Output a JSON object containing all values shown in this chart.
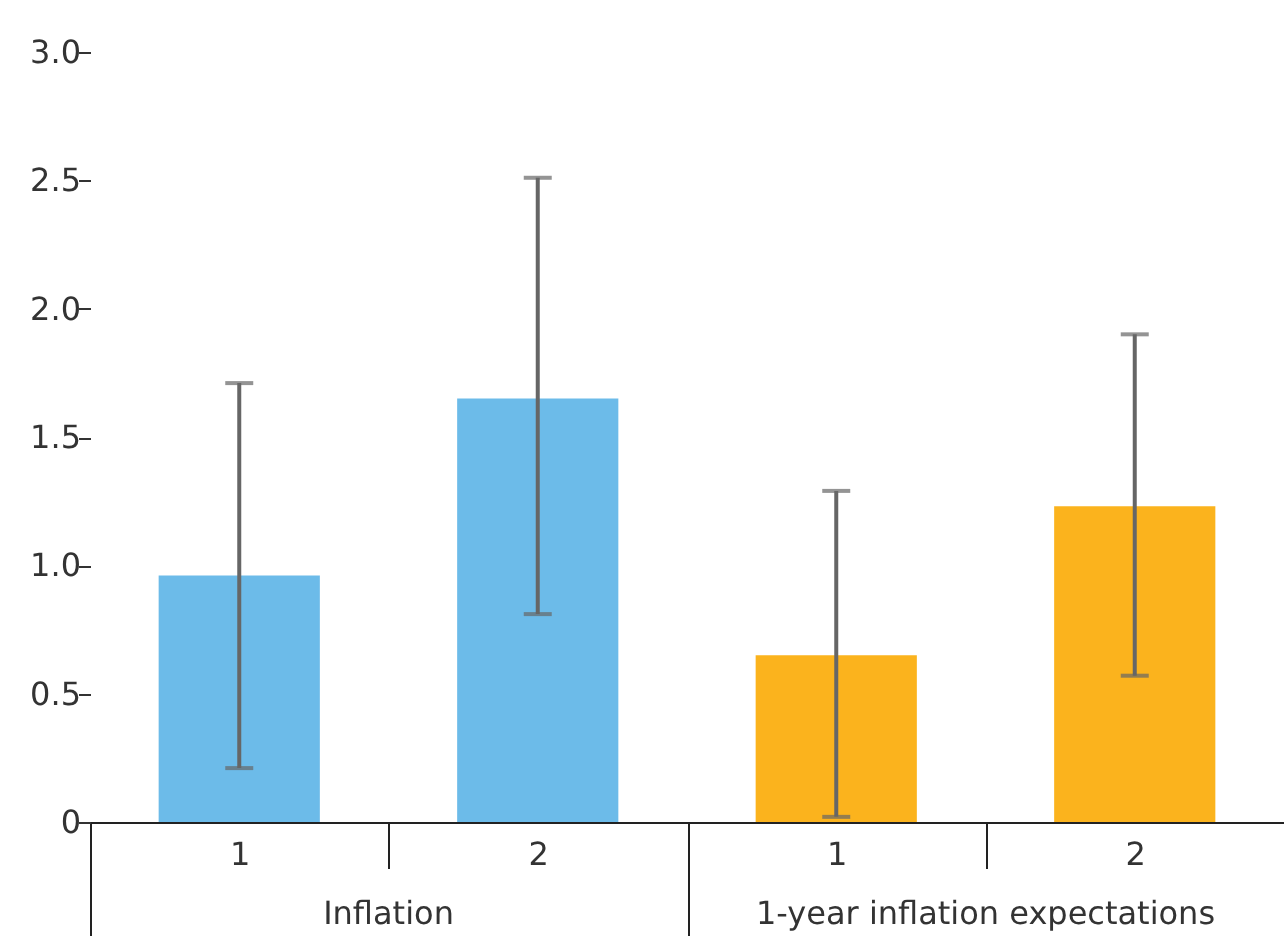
{
  "chart_data": {
    "type": "bar",
    "categories": [
      "1",
      "2",
      "1",
      "2"
    ],
    "values": [
      0.96,
      1.65,
      0.65,
      1.23
    ],
    "colors": [
      "#6cbbe9",
      "#6cbbe9",
      "#fbb31d",
      "#fbb31d"
    ],
    "errors": [
      [
        0.21,
        1.71
      ],
      [
        0.81,
        2.51
      ],
      [
        0.02,
        1.29
      ],
      [
        0.57,
        1.9
      ]
    ],
    "ylim": [
      0,
      3
    ],
    "yticks": [
      {
        "value": 0,
        "label": "0"
      },
      0.5,
      {
        "value": 1,
        "label": "1.0"
      },
      1.5,
      {
        "value": 2,
        "label": "2.0"
      },
      2.5,
      {
        "value": 3,
        "label": "3.0"
      }
    ],
    "annotations": [
      "Inflation",
      "1-year inflation expectations"
    ],
    "grid": false
  }
}
